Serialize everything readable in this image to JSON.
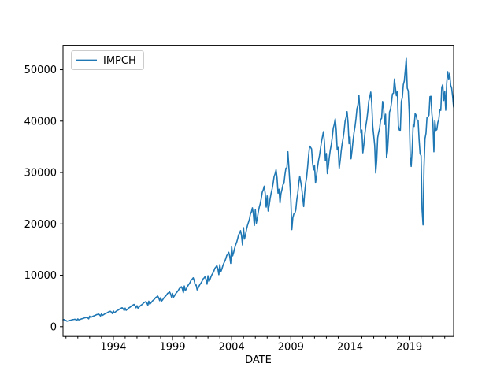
{
  "chart_data": {
    "type": "line",
    "title": "",
    "xlabel": "DATE",
    "ylabel": "",
    "grid": false,
    "legend_position": "upper-left",
    "line_color": "#1f77b4",
    "axis_color": "#000000",
    "legend_border_color": "#cccccc",
    "background_color": "#ffffff",
    "yticks": [
      0,
      10000,
      20000,
      30000,
      40000,
      50000
    ],
    "ytick_labels": [
      "0",
      "10000",
      "20000",
      "30000",
      "40000",
      "50000"
    ],
    "xticks": [
      1994,
      1999,
      2004,
      2009,
      2014,
      2019
    ],
    "xtick_labels": [
      "1994",
      "1999",
      "2004",
      "2009",
      "2014",
      "2019"
    ],
    "x_minor_ticks_every_year": true,
    "ylim": [
      -1900,
      54740
    ],
    "x_range": {
      "start": "1989-10",
      "end": "2022-10",
      "frequency": "monthly"
    },
    "series": [
      {
        "name": "IMPCH",
        "values": [
          1345,
          1388,
          1245,
          1205,
          1066,
          1117,
          1180,
          1231,
          1269,
          1320,
          1383,
          1409,
          1447,
          1370,
          1231,
          1502,
          1328,
          1391,
          1470,
          1534,
          1581,
          1644,
          1723,
          1755,
          1802,
          1707,
          1534,
          2037,
          1801,
          1887,
          1994,
          2080,
          2144,
          2230,
          2337,
          2380,
          2444,
          2316,
          2080,
          2497,
          2208,
          2313,
          2444,
          2549,
          2628,
          2733,
          2865,
          2917,
          2996,
          2838,
          2549,
          3070,
          2715,
          2844,
          3006,
          3135,
          3232,
          3361,
          3523,
          3588,
          3684,
          3491,
          3135,
          3605,
          3188,
          3340,
          3529,
          3681,
          3795,
          3947,
          4137,
          4212,
          4326,
          4099,
          3681,
          4078,
          3606,
          3778,
          3992,
          4164,
          4293,
          4465,
          4679,
          4765,
          4894,
          4636,
          4164,
          4952,
          4379,
          4587,
          4848,
          5057,
          5213,
          5422,
          5682,
          5786,
          5943,
          5630,
          5057,
          5634,
          4982,
          5219,
          5516,
          5753,
          5931,
          6168,
          6465,
          6583,
          6761,
          6405,
          5753,
          6475,
          5725,
          5998,
          6339,
          6612,
          6816,
          7089,
          7429,
          7566,
          7770,
          7361,
          6612,
          7918,
          7001,
          7335,
          7752,
          8085,
          8335,
          8668,
          9085,
          9252,
          9502,
          9002,
          8085,
          8097,
          7159,
          7500,
          7926,
          8267,
          8523,
          8864,
          9290,
          9460,
          9716,
          9205,
          8267,
          9911,
          8764,
          9181,
          9703,
          10120,
          10433,
          10850,
          11372,
          11581,
          11894,
          11268,
          10120,
          12068,
          10670,
          11179,
          11814,
          12322,
          12703,
          13211,
          13846,
          14100,
          14481,
          13720,
          12322,
          15571,
          13768,
          14423,
          15243,
          15898,
          16390,
          17046,
          17865,
          18193,
          18685,
          17701,
          15898,
          19275,
          17043,
          17854,
          18869,
          19680,
          20289,
          20901,
          21915,
          22321,
          23129,
          21912,
          19680,
          22782,
          20144,
          21103,
          22302,
          23262,
          23981,
          24940,
          26139,
          26619,
          27338,
          25900,
          23262,
          25448,
          22501,
          23572,
          24912,
          25983,
          26787,
          27858,
          29198,
          29733,
          30537,
          28930,
          25983,
          26744,
          24073,
          25904,
          26682,
          27624,
          27870,
          29569,
          30843,
          30895,
          34032,
          30976,
          27904,
          24743,
          18885,
          21166,
          21919,
          22066,
          22700,
          24660,
          25908,
          27858,
          29289,
          28199,
          26981,
          25195,
          23364,
          26064,
          27929,
          29038,
          31089,
          33260,
          35130,
          34900,
          34600,
          31900,
          30500,
          31442,
          27958,
          29290,
          30953,
          32284,
          33281,
          34612,
          35946,
          36940,
          37940,
          35940,
          32284,
          33695,
          29793,
          31212,
          32985,
          34404,
          35468,
          36887,
          38660,
          39370,
          40435,
          38305,
          34404,
          34867,
          30830,
          32298,
          34133,
          35601,
          36702,
          38170,
          40005,
          40740,
          41842,
          39640,
          35601,
          36944,
          32666,
          34221,
          36166,
          37721,
          38888,
          40443,
          42387,
          43166,
          45048,
          41990,
          37721,
          38254,
          33824,
          35435,
          37448,
          39059,
          40267,
          41878,
          43891,
          44696,
          45655,
          43488,
          39059,
          37169,
          35216,
          29911,
          32273,
          36735,
          37822,
          38576,
          40296,
          40553,
          43827,
          42605,
          39344,
          41344,
          32877,
          34148,
          37453,
          41771,
          42231,
          43585,
          45293,
          45430,
          48169,
          46438,
          44941,
          45788,
          39067,
          38255,
          38226,
          43826,
          44571,
          47073,
          47817,
          49879,
          52208,
          46393,
          45906,
          41600,
          33155,
          31176,
          34420,
          39278,
          38969,
          41449,
          41151,
          40177,
          40115,
          36432,
          33672,
          33280,
          22813,
          19805,
          31071,
          36600,
          37640,
          40660,
          40800,
          41166,
          44776,
          44831,
          41360,
          39593,
          34028,
          40107,
          38180,
          38333,
          39753,
          40329,
          42248,
          42100,
          46584,
          47076,
          44013,
          45843,
          42120,
          47371,
          49621,
          48200,
          49300,
          46980,
          46450,
          44750,
          42708
        ]
      }
    ]
  },
  "legend": {
    "label": "IMPCH"
  },
  "axes": {
    "xlabel": "DATE"
  }
}
